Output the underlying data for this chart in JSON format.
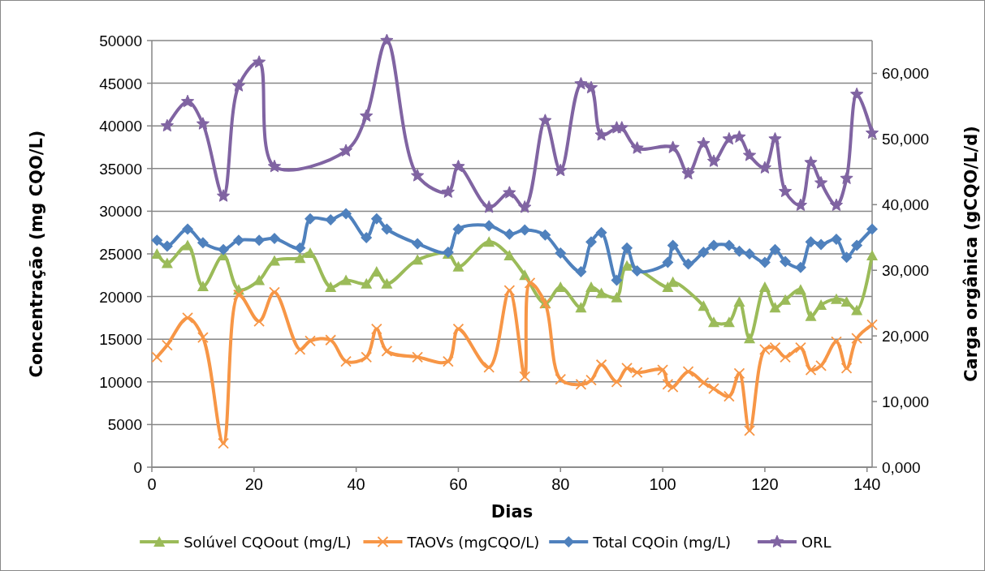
{
  "chart_data": {
    "type": "line",
    "xlabel": "Dias",
    "ylabel": "Concentração (mg CQO/L)",
    "y2label": "Carga orgânica (gCQO/L/d)",
    "xlim": [
      0,
      141
    ],
    "xticks": [
      0,
      20,
      40,
      60,
      80,
      100,
      120,
      140
    ],
    "ylim": [
      0,
      50000
    ],
    "yticks": [
      0,
      5000,
      10000,
      15000,
      20000,
      25000,
      30000,
      35000,
      40000,
      45000,
      50000
    ],
    "y2lim": [
      0,
      65000
    ],
    "y2ticks": [
      {
        "value": 0,
        "label": "0,000"
      },
      {
        "value": 10000,
        "label": "10,000"
      },
      {
        "value": 20000,
        "label": "20,000"
      },
      {
        "value": 30000,
        "label": "30,000"
      },
      {
        "value": 40000,
        "label": "40,000"
      },
      {
        "value": 50000,
        "label": "50,000"
      },
      {
        "value": 60000,
        "label": "60,000"
      }
    ],
    "grid": "y",
    "legend": "bottom",
    "line_style": "solid",
    "series": [
      {
        "name": "Solúvel CQOout (mg/L)",
        "color": "#9bbb59",
        "marker": "triangle",
        "x": [
          1,
          3,
          7,
          10,
          14,
          17,
          21,
          24,
          29,
          31,
          35,
          38,
          42,
          44,
          46,
          52,
          58,
          60,
          66,
          70,
          73,
          77,
          80,
          84,
          86,
          88,
          91,
          93,
          101,
          102,
          108,
          110,
          113,
          115,
          117,
          120,
          122,
          124,
          127,
          129,
          131,
          134,
          136,
          138,
          141
        ],
        "values": [
          25000,
          23900,
          26000,
          21200,
          24800,
          20800,
          21900,
          24200,
          24500,
          25100,
          21100,
          21900,
          21500,
          22900,
          21500,
          24300,
          25000,
          23500,
          26400,
          24800,
          22500,
          19200,
          21100,
          18700,
          21100,
          20400,
          19900,
          23600,
          21100,
          21700,
          18900,
          17000,
          17000,
          19400,
          15100,
          21100,
          18700,
          19600,
          20800,
          17700,
          19000,
          19700,
          19400,
          18400,
          24800
        ]
      },
      {
        "name": "TAOVs  (mgCQO/L)",
        "color": "#f79646",
        "marker": "cross",
        "x": [
          1,
          3,
          7,
          10,
          14,
          17,
          21,
          24,
          29,
          31,
          35,
          38,
          42,
          44,
          46,
          52,
          58,
          60,
          66,
          70,
          73,
          74,
          77,
          80,
          84,
          86,
          88,
          91,
          93,
          95,
          100,
          101,
          102,
          105,
          108,
          110,
          113,
          115,
          117,
          120,
          122,
          124,
          127,
          129,
          131,
          134,
          136,
          138,
          141
        ],
        "values": [
          12900,
          14300,
          17500,
          15200,
          2800,
          20200,
          17100,
          20500,
          13800,
          14800,
          14900,
          12400,
          12900,
          16200,
          13600,
          12900,
          12400,
          16200,
          11700,
          20700,
          10600,
          21600,
          19200,
          10300,
          9700,
          10200,
          12000,
          10000,
          11600,
          11100,
          11400,
          9700,
          9400,
          11200,
          9900,
          9200,
          8300,
          11000,
          4300,
          13800,
          14000,
          12900,
          14000,
          11400,
          11900,
          14700,
          11600,
          15100,
          16700
        ]
      },
      {
        "name": "Total CQOin  (mg/L)",
        "color": "#4f81bd",
        "marker": "diamond",
        "x": [
          1,
          3,
          7,
          10,
          14,
          17,
          21,
          24,
          29,
          31,
          35,
          38,
          42,
          44,
          46,
          52,
          58,
          60,
          66,
          70,
          73,
          77,
          80,
          84,
          86,
          88,
          91,
          93,
          95,
          101,
          102,
          105,
          108,
          110,
          113,
          115,
          117,
          120,
          122,
          124,
          127,
          129,
          131,
          134,
          136,
          138,
          141
        ],
        "values": [
          26600,
          25900,
          27900,
          26300,
          25500,
          26600,
          26600,
          26800,
          25700,
          29100,
          29000,
          29700,
          26900,
          29100,
          27900,
          26200,
          25200,
          27900,
          28300,
          27300,
          27800,
          27200,
          25100,
          22900,
          26400,
          27500,
          21900,
          25700,
          23000,
          24000,
          26000,
          23800,
          25200,
          26000,
          26000,
          25300,
          25000,
          24000,
          25500,
          24100,
          23400,
          26400,
          26100,
          26700,
          24600,
          26000,
          27900
        ]
      },
      {
        "name": "ORL",
        "color": "#8064a2",
        "marker": "star",
        "axis": "y2",
        "x": [
          3,
          7,
          10,
          14,
          17,
          21,
          24,
          38,
          42,
          46,
          52,
          58,
          60,
          66,
          70,
          73,
          77,
          80,
          84,
          86,
          88,
          91,
          92,
          95,
          102,
          105,
          108,
          110,
          113,
          115,
          117,
          120,
          122,
          124,
          127,
          129,
          131,
          134,
          136,
          138,
          141
        ],
        "values": [
          52000,
          55700,
          52300,
          41300,
          58100,
          61700,
          45800,
          48200,
          53500,
          65000,
          44400,
          41900,
          45800,
          39600,
          41800,
          39600,
          52800,
          45200,
          58400,
          57800,
          50600,
          51700,
          51700,
          48600,
          48700,
          44700,
          49300,
          46600,
          50000,
          50300,
          47500,
          45600,
          50000,
          42000,
          39900,
          46400,
          43300,
          39900,
          44000,
          56800,
          50900
        ]
      }
    ]
  }
}
